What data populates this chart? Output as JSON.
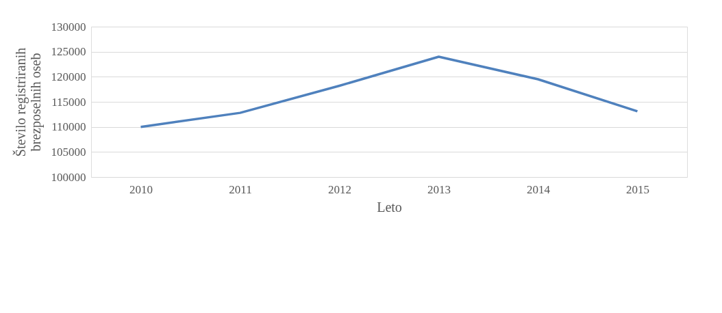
{
  "chart_data": {
    "type": "line",
    "xlabel": "Leto",
    "ylabel": "Število registriranih\nbrezposelnih oseb",
    "categories": [
      "2010",
      "2011",
      "2012",
      "2013",
      "2014",
      "2015"
    ],
    "series": [
      {
        "color": "#4f81bd",
        "values": [
          110000,
          112800,
          118200,
          124000,
          119500,
          113100
        ]
      }
    ],
    "ylim": [
      100000,
      130000
    ],
    "yticks": [
      100000,
      105000,
      110000,
      115000,
      120000,
      125000,
      130000
    ],
    "grid": "y",
    "marker": "none",
    "line_style": "solid"
  }
}
